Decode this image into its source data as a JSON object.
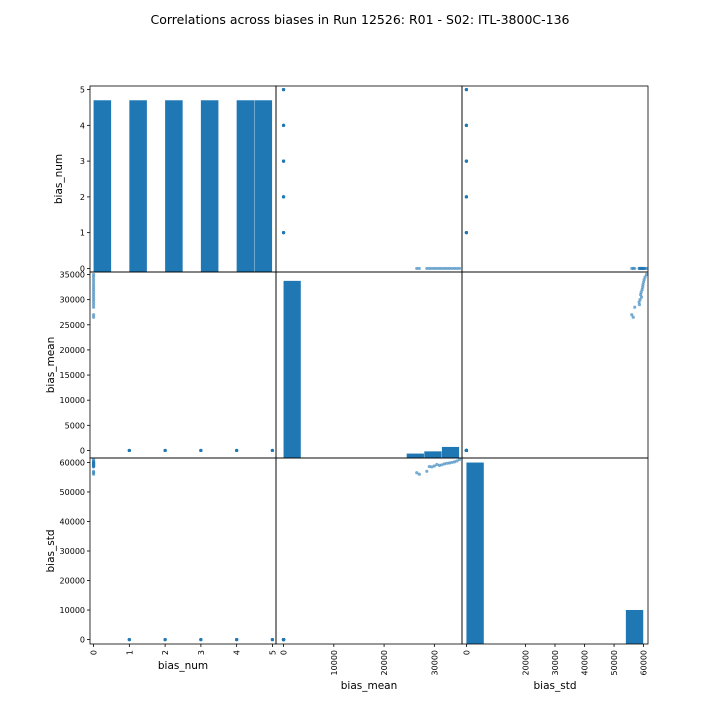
{
  "chart_data": {
    "type": "scatter_matrix",
    "title": "Correlations across biases in Run 12526: R01 - S02: ITL-3800C-136",
    "variables": [
      "bias_num",
      "bias_mean",
      "bias_std"
    ],
    "ranges": {
      "bias_num": [
        -0.1,
        5.1
      ],
      "bias_mean": [
        -1500,
        35500
      ],
      "bias_std": [
        -1500,
        61500
      ]
    },
    "ticks": {
      "bias_num": [
        0,
        1,
        2,
        3,
        4,
        5
      ],
      "bias_mean": [
        0,
        5000,
        10000,
        15000,
        20000,
        25000,
        30000,
        35000
      ],
      "bias_std": [
        0,
        10000,
        20000,
        30000,
        40000,
        50000,
        60000
      ]
    },
    "x_ticks": {
      "bias_num": [
        0,
        1,
        2,
        3,
        4,
        5
      ],
      "bias_mean": [
        0,
        10000,
        20000,
        30000
      ],
      "bias_std": [
        0,
        20000,
        30000,
        40000,
        50000,
        60000
      ]
    },
    "x_tick_labels": {
      "bias_num": [
        "0",
        "1",
        "2",
        "3",
        "4",
        "5"
      ],
      "bias_mean": [
        "0",
        "10000",
        "20000",
        "30000"
      ],
      "bias_std": [
        "0",
        "20000",
        "30000",
        "40000",
        "50000",
        "60000"
      ]
    },
    "histograms": {
      "bias_num": {
        "edges": [
          0,
          0.5,
          1,
          1.5,
          2,
          2.5,
          3,
          3.5,
          4,
          4.5,
          5
        ],
        "counts": [
          16,
          0,
          16,
          0,
          16,
          0,
          16,
          0,
          16,
          16
        ],
        "ylim": [
          0,
          17.33
        ]
      },
      "bias_mean": {
        "edges": [
          0,
          3500,
          7000,
          10500,
          14000,
          17500,
          21000,
          24500,
          28000,
          31500,
          35000
        ],
        "counts": [
          80,
          0,
          0,
          0,
          0,
          0,
          0,
          2,
          3,
          5
        ],
        "ylim": [
          0,
          84
        ]
      },
      "bias_std": {
        "edges": [
          0,
          6000,
          12000,
          18000,
          24000,
          30000,
          36000,
          42000,
          48000,
          54000,
          60000
        ],
        "counts": [
          80,
          0,
          0,
          0,
          0,
          0,
          0,
          0,
          0,
          15
        ],
        "ylim": [
          0,
          82
        ]
      }
    },
    "points": {
      "bias_num": [
        0,
        0,
        0,
        0,
        0,
        0,
        0,
        0,
        0,
        0,
        0,
        0,
        0,
        0,
        0,
        0,
        1,
        1,
        1,
        1,
        1,
        2,
        2,
        2,
        2,
        2,
        3,
        3,
        3,
        3,
        3,
        4,
        4,
        4,
        4,
        4,
        5,
        5,
        5,
        5,
        5
      ],
      "bias_mean": [
        26500,
        27000,
        28500,
        29500,
        30000,
        31000,
        31500,
        32000,
        33000,
        34000,
        34500,
        35000,
        30500,
        29000,
        32500,
        33500,
        0,
        0,
        0,
        0,
        0,
        0,
        0,
        0,
        0,
        0,
        0,
        0,
        0,
        0,
        0,
        0,
        0,
        0,
        0,
        0,
        0,
        0,
        0,
        0,
        0
      ],
      "bias_std": [
        56500,
        56000,
        57000,
        58500,
        58800,
        59000,
        59200,
        59500,
        59800,
        60200,
        60500,
        61000,
        59300,
        58600,
        59700,
        60000,
        0,
        0,
        0,
        0,
        0,
        0,
        0,
        0,
        0,
        0,
        0,
        0,
        0,
        0,
        0,
        0,
        0,
        0,
        0,
        0,
        0,
        0,
        0,
        0,
        0
      ]
    },
    "grid": false
  }
}
